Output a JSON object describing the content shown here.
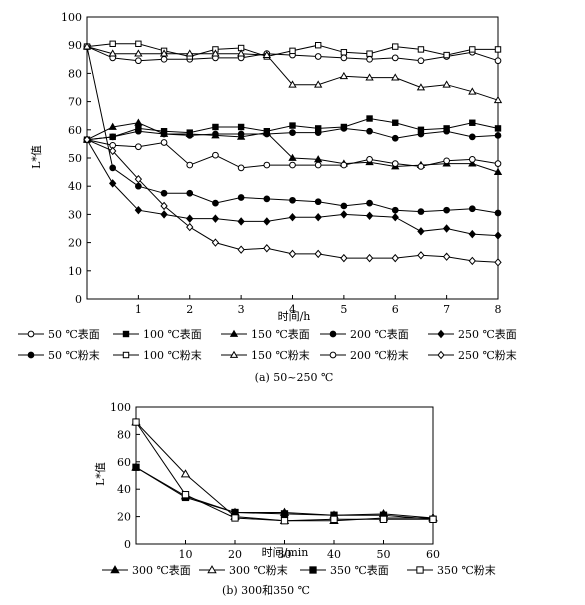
{
  "chart_data": [
    {
      "type": "line",
      "caption": "(a) 50~250 ℃",
      "xlabel": "时间/h",
      "ylabel": "L*值",
      "xlim": [
        0,
        8
      ],
      "ylim": [
        0,
        100
      ],
      "xticks": [
        "1",
        "2",
        "3",
        "4",
        "5",
        "6",
        "7",
        "8"
      ],
      "yticks": [
        "0",
        "10",
        "20",
        "30",
        "40",
        "50",
        "60",
        "70",
        "80",
        "90",
        "100"
      ],
      "grid": false,
      "legend_position": "bottom",
      "x": [
        0,
        0.5,
        1,
        1.5,
        2,
        2.5,
        3,
        3.5,
        4,
        4.5,
        5,
        5.5,
        6,
        6.5,
        7,
        7.5,
        8
      ],
      "series": [
        {
          "name": "50 ℃表面",
          "marker": "circle-open",
          "values": [
            89.5,
            85.5,
            84.5,
            85,
            85,
            85.5,
            85.5,
            87,
            86.5,
            86,
            85.5,
            85,
            85.5,
            84.5,
            86,
            87.5,
            84.5
          ]
        },
        {
          "name": "100 ℃表面",
          "marker": "square-filled",
          "values": [
            56.5,
            57.5,
            60.5,
            59.5,
            59,
            61,
            61,
            59.5,
            61.5,
            60.5,
            61,
            64,
            62.5,
            60,
            60.5,
            62.5,
            60.5
          ]
        },
        {
          "name": "150 ℃表面",
          "marker": "triangle-filled",
          "values": [
            56.5,
            61,
            62.5,
            58.5,
            58.5,
            58,
            57.5,
            59,
            50,
            49.5,
            48,
            48.5,
            47,
            47.5,
            48,
            48,
            45
          ]
        },
        {
          "name": "200 ℃表面",
          "marker": "circle-filled",
          "values": [
            56.5,
            57.5,
            59.5,
            58.5,
            58,
            58.5,
            58.5,
            58.5,
            59,
            59,
            60.5,
            59.5,
            57,
            58.5,
            59.5,
            57.5,
            58
          ]
        },
        {
          "name": "250 ℃表面",
          "marker": "diamond-filled",
          "values": [
            56.5,
            41,
            31.5,
            30,
            28.5,
            28.5,
            27.5,
            27.5,
            29,
            29,
            30,
            29.5,
            29,
            24,
            25,
            23,
            22.5
          ]
        },
        {
          "name": "50 ℃粉末",
          "marker": "circle-filled",
          "values": [
            89.5,
            46.5,
            40,
            37.5,
            37.5,
            34,
            36,
            35.5,
            35,
            34.5,
            33,
            34,
            31.5,
            31,
            31.5,
            32,
            30.5
          ]
        },
        {
          "name": "100 ℃粉末",
          "marker": "square-open",
          "values": [
            89.5,
            90.5,
            90.5,
            88,
            86,
            88.5,
            89,
            86,
            88,
            90,
            87.5,
            87,
            89.5,
            88.5,
            86.5,
            88.5,
            88.5
          ]
        },
        {
          "name": "150 ℃粉末",
          "marker": "triangle-open",
          "values": [
            89.5,
            87,
            87,
            87,
            87,
            87,
            87,
            86.5,
            76,
            76,
            79,
            78.5,
            78.5,
            75,
            76,
            73.5,
            70.5
          ]
        },
        {
          "name": "200 ℃粉末",
          "marker": "circle-open-stroke",
          "values": [
            56.5,
            54.5,
            54,
            55.5,
            47.5,
            51,
            46.5,
            47.5,
            47.5,
            47.5,
            47.5,
            49.5,
            48,
            47,
            49,
            49.5,
            48
          ]
        },
        {
          "name": "250 ℃粉末",
          "marker": "diamond-open",
          "values": [
            56.5,
            52.5,
            42.5,
            33,
            25.5,
            20,
            17.5,
            18,
            16,
            16,
            14.5,
            14.5,
            14.5,
            15.5,
            15,
            13.5,
            13
          ]
        }
      ]
    },
    {
      "type": "line",
      "caption": "(b) 300和350 ℃",
      "xlabel": "时间/min",
      "ylabel": "L*值",
      "xlim": [
        0,
        60
      ],
      "ylim": [
        0,
        100
      ],
      "xticks": [
        "10",
        "20",
        "30",
        "40",
        "50",
        "60"
      ],
      "yticks": [
        "0",
        "20",
        "40",
        "60",
        "80",
        "100"
      ],
      "grid": false,
      "legend_position": "bottom",
      "x": [
        0,
        10,
        20,
        30,
        40,
        50,
        60
      ],
      "series": [
        {
          "name": "300 ℃表面",
          "marker": "triangle-filled",
          "values": [
            56,
            35,
            23,
            23,
            21,
            22,
            19
          ]
        },
        {
          "name": "300 ℃粉末",
          "marker": "triangle-open",
          "values": [
            89,
            51,
            20,
            17,
            17,
            19,
            19
          ]
        },
        {
          "name": "350 ℃表面",
          "marker": "square-filled",
          "values": [
            56,
            34,
            23,
            22,
            21,
            21,
            18
          ]
        },
        {
          "name": "350 ℃粉末",
          "marker": "square-open",
          "values": [
            89,
            36,
            19,
            17,
            18,
            18,
            18
          ]
        }
      ]
    }
  ]
}
